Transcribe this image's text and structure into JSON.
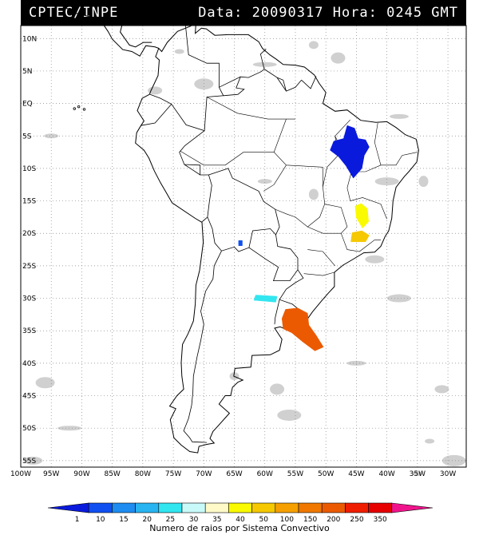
{
  "header": {
    "source": "CPTEC/INPE",
    "datetime": "Data: 20090317 Hora: 0245 GMT"
  },
  "map": {
    "lat_labels": [
      "10N",
      "5N",
      "EQ",
      "5S",
      "10S",
      "15S",
      "20S",
      "25S",
      "30S",
      "35S",
      "40S",
      "45S",
      "50S",
      "55S"
    ],
    "lon_labels": [
      "100W",
      "95W",
      "90W",
      "85W",
      "80W",
      "75W",
      "70W",
      "65W",
      "60W",
      "55W",
      "50W",
      "45W",
      "40W",
      "35W",
      "30W"
    ],
    "lat_range": [
      -56,
      12
    ],
    "lon_range": [
      -100,
      -27
    ],
    "gridlines": "dotted"
  },
  "lightning_clusters": [
    {
      "region": "northeast-brazil",
      "lon": -45.5,
      "lat": -7.0,
      "class": 1
    },
    {
      "region": "minas-gerais-north",
      "lon": -44.0,
      "lat": -17.0,
      "class": 40
    },
    {
      "region": "minas-gerais-south",
      "lon": -44.5,
      "lat": -20.5,
      "class": 50
    },
    {
      "region": "bolivia-chaco",
      "lon": -64.0,
      "lat": -21.5,
      "class": 10
    },
    {
      "region": "argentina-central",
      "lon": -60.0,
      "lat": -30.0,
      "class": 25
    },
    {
      "region": "uruguay-rio-grande",
      "lon": -55.0,
      "lat": -33.5,
      "class": 200
    }
  ],
  "legend": {
    "title": "Numero de raios por Sistema Convectivo",
    "labels": [
      "1",
      "10",
      "15",
      "20",
      "25",
      "30",
      "35",
      "40",
      "50",
      "100",
      "150",
      "200",
      "250",
      "350"
    ],
    "colors": [
      "#0a1adc",
      "#1050f0",
      "#1e8cf0",
      "#28b4f0",
      "#32e6f0",
      "#c8fafa",
      "#fffac8",
      "#fafa00",
      "#f5c800",
      "#f5a000",
      "#f07800",
      "#eb5a00",
      "#f01e00",
      "#e60000",
      "#f0148c"
    ]
  }
}
